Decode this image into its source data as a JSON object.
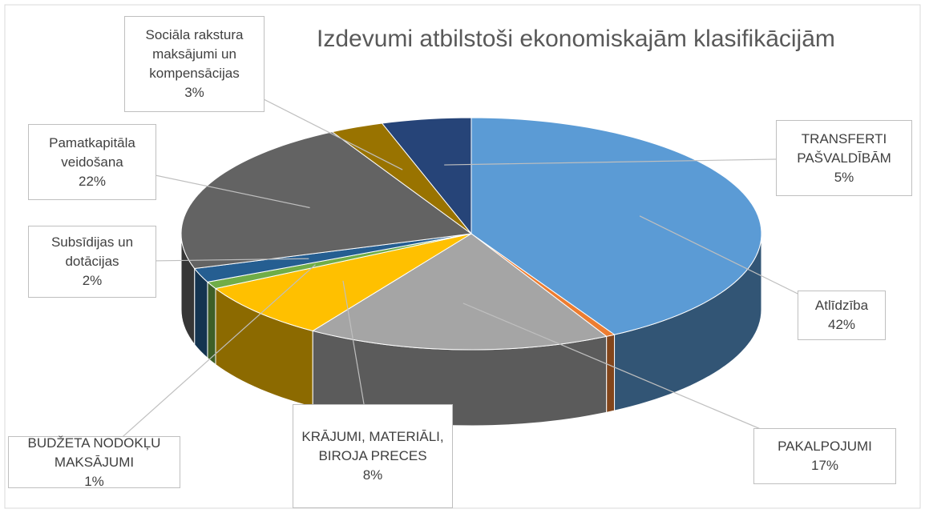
{
  "chart_data": {
    "type": "pie",
    "title": "Izdevumi atbilstoši ekonomiskajām  klasifikācijām",
    "categories": [
      "Atlīdzība",
      null,
      "PAKALPOJUMI",
      "KRĀJUMI, MATERIĀLI, BIROJA PRECES",
      "BUDŽETA  NODOKĻU MAKSĀJUMI",
      "Subsīdijas un dotācijas",
      "Pamatkapitāla veidošana",
      "Sociāla rakstura maksājumi un kompensācijas",
      "TRANSFERTI PAŠVALDĪBĀM"
    ],
    "values": [
      42,
      0.5,
      17,
      8,
      1,
      2,
      22,
      3,
      5
    ],
    "value_labels": [
      "42%",
      null,
      "17%",
      "8%",
      "1%",
      "2%",
      "22%",
      "3%",
      "5%"
    ],
    "colors": [
      "#5b9bd5",
      "#ed7d31",
      "#a5a5a5",
      "#ffc000",
      "#70ad47",
      "#255e91",
      "#636363",
      "#997300",
      "#264478"
    ]
  }
}
